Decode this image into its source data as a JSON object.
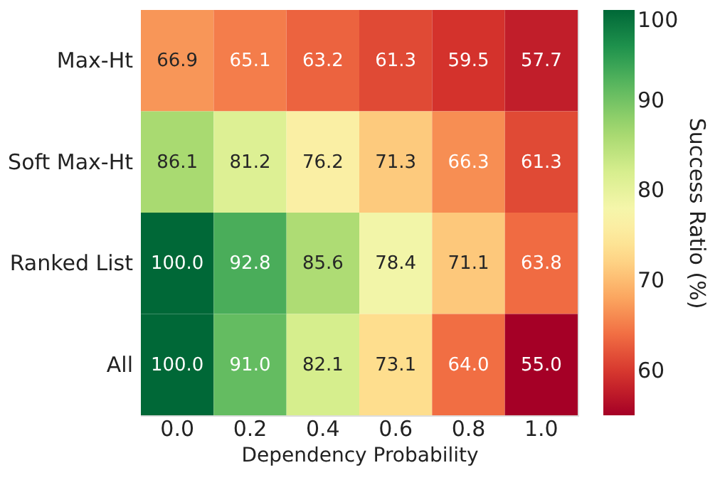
{
  "chart_data": {
    "type": "heatmap",
    "xlabel": "Dependency Probability",
    "clabel": "Success Ratio (%)",
    "categories": [
      "0.0",
      "0.2",
      "0.4",
      "0.6",
      "0.8",
      "1.0"
    ],
    "y_categories": [
      "Max-Ht",
      "Soft Max-Ht",
      "Ranked List",
      "All"
    ],
    "cells": [
      [
        66.9,
        65.1,
        63.2,
        61.3,
        59.5,
        57.7
      ],
      [
        86.1,
        81.2,
        76.2,
        71.3,
        66.3,
        61.3
      ],
      [
        100.0,
        92.8,
        85.6,
        78.4,
        71.1,
        63.8
      ],
      [
        100.0,
        91.0,
        82.1,
        73.1,
        64.0,
        55.0
      ]
    ],
    "cell_labels": [
      [
        "66.9",
        "65.1",
        "63.2",
        "61.3",
        "59.5",
        "57.7"
      ],
      [
        "86.1",
        "81.2",
        "76.2",
        "71.3",
        "66.3",
        "61.3"
      ],
      [
        "100.0",
        "92.8",
        "85.6",
        "78.4",
        "71.1",
        "63.8"
      ],
      [
        "100.0",
        "91.0",
        "82.1",
        "73.1",
        "64.0",
        "55.0"
      ]
    ],
    "clim": [
      55,
      100
    ],
    "cticks": [
      60,
      70,
      80,
      90,
      100
    ]
  }
}
